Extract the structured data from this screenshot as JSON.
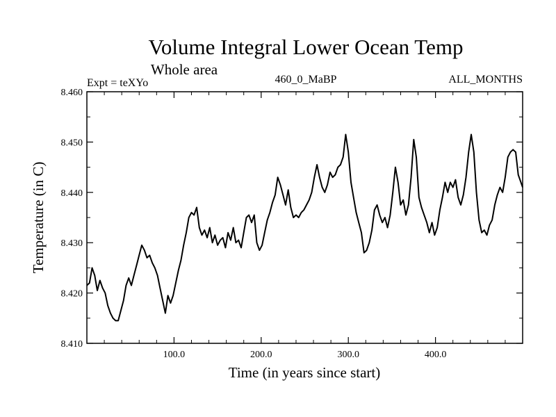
{
  "chart_data": {
    "type": "line",
    "title": "Volume Integral Lower Ocean Temp",
    "subtitle": "Whole area",
    "left_label": "Expt = teXYo",
    "center_label": "460_0_MaBP",
    "right_label": "ALL_MONTHS",
    "xlabel": "Time (in years since start)",
    "ylabel": "Temperature (in C)",
    "xlim": [
      0,
      500
    ],
    "ylim": [
      8.41,
      8.46
    ],
    "x_ticks": [
      {
        "value": 100,
        "label": "100.0"
      },
      {
        "value": 200,
        "label": "200.0"
      },
      {
        "value": 300,
        "label": "300.0"
      },
      {
        "value": 400,
        "label": "400.0"
      }
    ],
    "y_ticks": [
      {
        "value": 8.41,
        "label": "8.410"
      },
      {
        "value": 8.42,
        "label": "8.420"
      },
      {
        "value": 8.43,
        "label": "8.430"
      },
      {
        "value": 8.44,
        "label": "8.440"
      },
      {
        "value": 8.45,
        "label": "8.450"
      },
      {
        "value": 8.46,
        "label": "8.460"
      }
    ],
    "grid": false,
    "series": [
      {
        "color": "#000000",
        "x": [
          0,
          3,
          6,
          9,
          12,
          15,
          18,
          21,
          24,
          27,
          30,
          33,
          36,
          39,
          42,
          45,
          48,
          51,
          54,
          57,
          60,
          63,
          66,
          69,
          72,
          75,
          78,
          81,
          84,
          87,
          90,
          93,
          96,
          99,
          102,
          105,
          108,
          111,
          114,
          117,
          120,
          123,
          126,
          129,
          132,
          135,
          138,
          141,
          144,
          147,
          150,
          153,
          156,
          159,
          162,
          165,
          168,
          171,
          174,
          177,
          180,
          183,
          186,
          189,
          192,
          195,
          198,
          201,
          204,
          207,
          210,
          213,
          216,
          219,
          222,
          225,
          228,
          231,
          234,
          237,
          240,
          243,
          246,
          249,
          252,
          255,
          258,
          261,
          264,
          267,
          270,
          273,
          276,
          279,
          282,
          285,
          288,
          291,
          294,
          297,
          300,
          303,
          306,
          309,
          312,
          315,
          318,
          321,
          324,
          327,
          330,
          333,
          336,
          339,
          342,
          345,
          348,
          351,
          354,
          357,
          360,
          363,
          366,
          369,
          372,
          375,
          378,
          381,
          384,
          387,
          390,
          393,
          396,
          399,
          402,
          405,
          408,
          411,
          414,
          417,
          420,
          423,
          426,
          429,
          432,
          435,
          438,
          441,
          444,
          447,
          450,
          453,
          456,
          459,
          462,
          465,
          468,
          471,
          474,
          477,
          480,
          483,
          486,
          489,
          492,
          495,
          498,
          500
        ],
        "values": [
          8.4215,
          8.422,
          8.425,
          8.4235,
          8.4205,
          8.4225,
          8.421,
          8.42,
          8.4175,
          8.416,
          8.415,
          8.4145,
          8.4145,
          8.4165,
          8.4185,
          8.4215,
          8.423,
          8.4215,
          8.4235,
          8.4255,
          8.4275,
          8.4295,
          8.4285,
          8.427,
          8.4275,
          8.426,
          8.425,
          8.4235,
          8.421,
          8.4185,
          8.416,
          8.4195,
          8.418,
          8.4195,
          8.422,
          8.4245,
          8.4265,
          8.4295,
          8.432,
          8.435,
          8.436,
          8.4355,
          8.437,
          8.433,
          8.4315,
          8.4325,
          8.431,
          8.433,
          8.43,
          8.4315,
          8.4295,
          8.4305,
          8.431,
          8.429,
          8.432,
          8.4305,
          8.433,
          8.43,
          8.4305,
          8.429,
          8.432,
          8.435,
          8.4355,
          8.434,
          8.4355,
          8.43,
          8.4285,
          8.4295,
          8.432,
          8.4345,
          8.436,
          8.438,
          8.4395,
          8.443,
          8.4415,
          8.4395,
          8.4375,
          8.4405,
          8.437,
          8.435,
          8.4355,
          8.435,
          8.436,
          8.4365,
          8.4375,
          8.4385,
          8.44,
          8.443,
          8.4455,
          8.443,
          8.441,
          8.44,
          8.4415,
          8.444,
          8.443,
          8.4435,
          8.445,
          8.4455,
          8.447,
          8.4515,
          8.448,
          8.442,
          8.439,
          8.436,
          8.434,
          8.432,
          8.428,
          8.4285,
          8.43,
          8.4325,
          8.4365,
          8.4375,
          8.4355,
          8.434,
          8.435,
          8.433,
          8.4355,
          8.44,
          8.445,
          8.442,
          8.4375,
          8.4385,
          8.4355,
          8.4375,
          8.443,
          8.4505,
          8.447,
          8.439,
          8.437,
          8.4355,
          8.434,
          8.432,
          8.434,
          8.4315,
          8.433,
          8.4365,
          8.439,
          8.442,
          8.44,
          8.442,
          8.441,
          8.4425,
          8.439,
          8.4375,
          8.4395,
          8.443,
          8.448,
          8.4515,
          8.448,
          8.44,
          8.4345,
          8.432,
          8.4325,
          8.4315,
          8.4335,
          8.4345,
          8.4375,
          8.4395,
          8.441,
          8.44,
          8.443,
          8.447,
          8.448,
          8.4485,
          8.448,
          8.4435,
          8.442,
          8.441
        ]
      }
    ]
  }
}
